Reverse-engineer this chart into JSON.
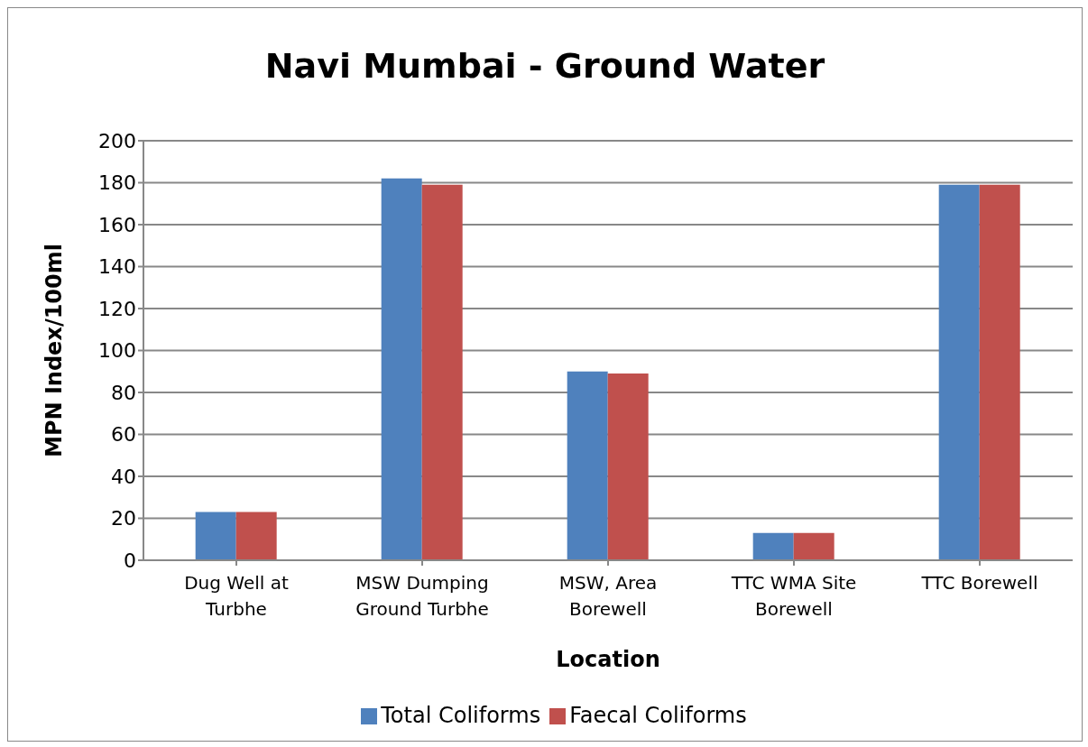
{
  "chart_data": {
    "type": "bar",
    "title": "Navi Mumbai - Ground Water",
    "xlabel": "Location",
    "ylabel": "MPN Index/100ml",
    "categories": [
      "Dug Well at Turbhe",
      "MSW Dumping Ground Turbhe",
      "MSW, Area Borewell",
      "TTC WMA Site Borewell",
      "TTC Borewell"
    ],
    "series": [
      {
        "name": "Total Coliforms",
        "color": "#4f81bd",
        "values": [
          23,
          182,
          90,
          13,
          179
        ]
      },
      {
        "name": "Faecal Coliforms",
        "color": "#c0504d",
        "values": [
          23,
          179,
          89,
          13,
          179
        ]
      }
    ],
    "ylim": [
      0,
      200
    ],
    "yticks": [
      0,
      20,
      40,
      60,
      80,
      100,
      120,
      140,
      160,
      180,
      200
    ],
    "grid": "y",
    "legend": "bottom"
  }
}
